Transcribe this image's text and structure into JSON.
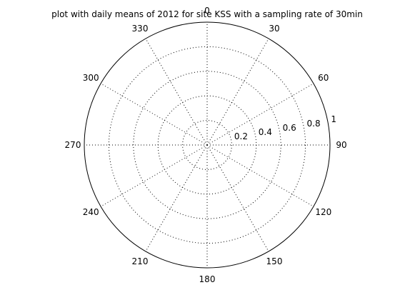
{
  "chart_data": {
    "type": "polar",
    "title": "plot with daily means of 2012 for site KSS with a sampling rate of 30min",
    "theta_zero": "top",
    "theta_direction": "clockwise",
    "theta_ticks": [
      0,
      30,
      60,
      90,
      120,
      150,
      180,
      210,
      240,
      270,
      300,
      330
    ],
    "theta_tick_labels": [
      "0",
      "30",
      "60",
      "90",
      "120",
      "150",
      "180",
      "210",
      "240",
      "270",
      "300",
      "330"
    ],
    "r_ticks": [
      0.2,
      0.4,
      0.6,
      0.8,
      1
    ],
    "r_tick_labels": [
      "0.2",
      "0.4",
      "0.6",
      "0.8",
      "1"
    ],
    "rlim": [
      0,
      1
    ],
    "grid": true,
    "grid_style": "dotted",
    "series": []
  },
  "colors": {
    "background": "#ffffff",
    "axis": "#000000",
    "grid": "#000000",
    "text": "#000000"
  }
}
